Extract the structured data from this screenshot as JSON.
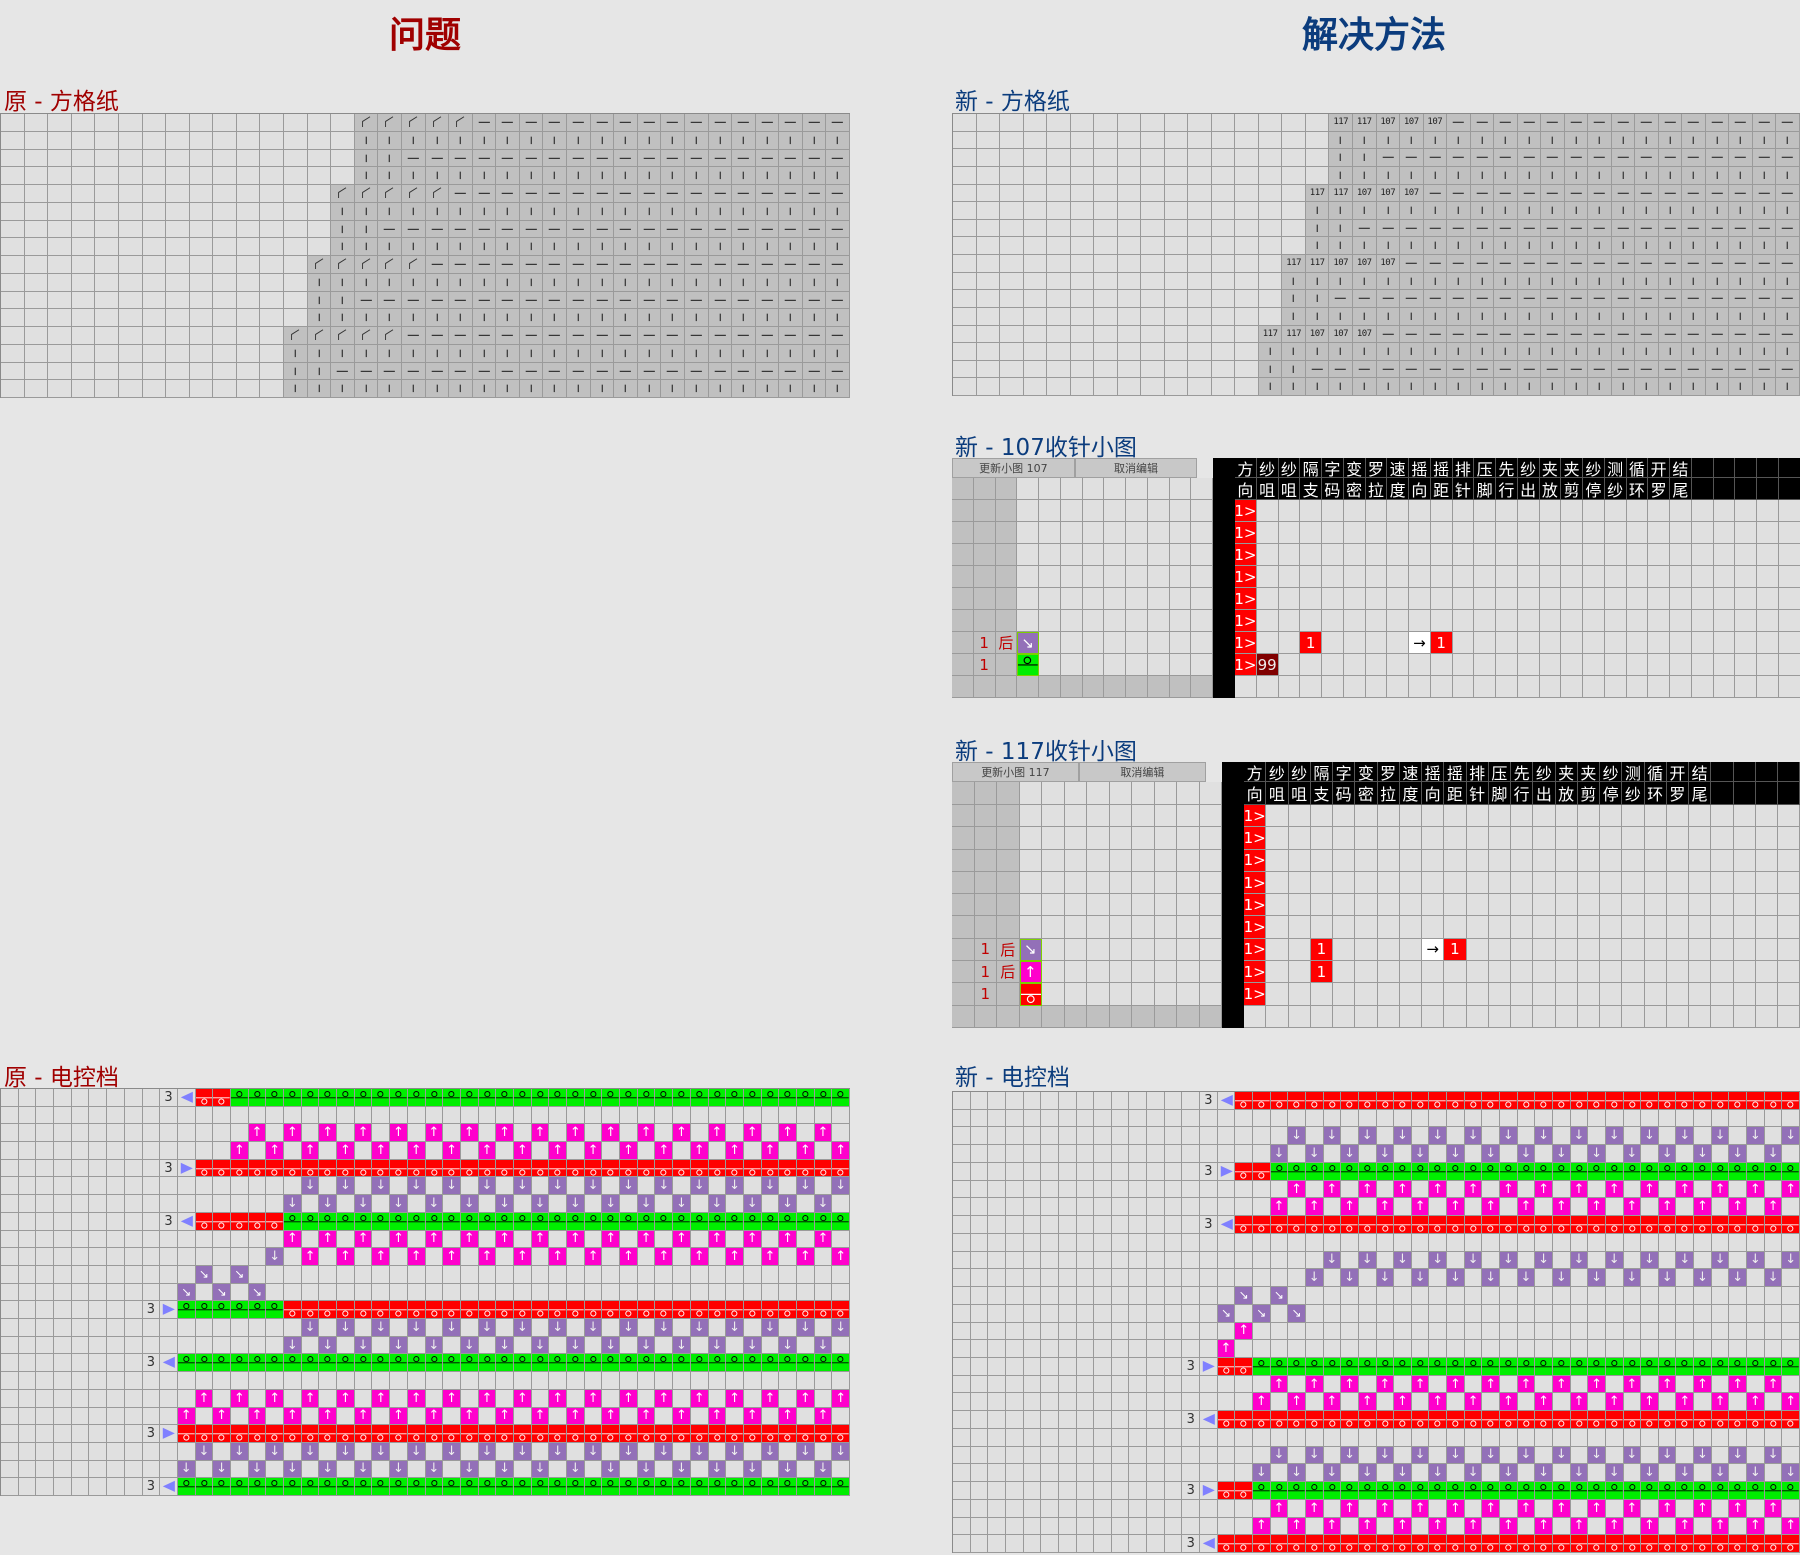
{
  "headers": {
    "problem": "问题",
    "solution": "解决方法"
  },
  "colors": {
    "problem": "#a00000",
    "solution": "#0b3c7d",
    "red": "#ff0000",
    "green": "#00ee00",
    "magenta": "#ff00cc",
    "purple": "#9370b8",
    "arrow": "#8080ff"
  },
  "orig_grid": {
    "title": "原 - 方格纸",
    "cols": 36,
    "symbols": {
      "c": "knit-tuck-corner",
      "|": "vertical",
      "-": "horizontal"
    },
    "rows": [
      "15. 5c 16-",
      "15. 21|",
      "15. 2| 19-",
      "15. 21|",
      "14. 5c 17-",
      "14. 22|",
      "14. 2| 20-",
      "14. 22|",
      "13. 5c 18-",
      "13. 23|",
      "13. 2| 21-",
      "13. 23|",
      "12. 5c 19-",
      "12. 24|",
      "12. 2| 22-",
      "12. 24|"
    ]
  },
  "new_grid": {
    "title": "新 - 方格纸",
    "cols": 36,
    "symbols": {
      "A": "117",
      "B": "107",
      "|": "vertical",
      "-": "horizontal"
    },
    "rows": [
      "16. 2A 3B 15-",
      "16. 20|",
      "16. 2| 18-",
      "16. 20|",
      "15. 2A 3B 16-",
      "15. 21|",
      "15. 2| 19-",
      "15. 21|",
      "14. 2A 3B 17-",
      "14. 22|",
      "14. 2| 20-",
      "14. 22|",
      "13. 2A 3B 18-",
      "13. 23|",
      "13. 2| 21-",
      "13. 23|"
    ]
  },
  "chart107": {
    "title": "新 - 107收针小图",
    "update_button": "更新小图 107",
    "cancel_button": "取消编辑",
    "header_top": [
      "方",
      "纱",
      "纱",
      "隔",
      "字",
      "变",
      "罗",
      "速",
      "摇",
      "摇",
      "排",
      "压",
      "先",
      "纱",
      "夹",
      "夹",
      "纱",
      "测",
      "循",
      "开",
      "结"
    ],
    "header_bottom": [
      "向",
      "咀",
      "咀",
      "支",
      "码",
      "密",
      "拉",
      "度",
      "向",
      "距",
      "针",
      "脚",
      "行",
      "出",
      "放",
      "剪",
      "停",
      "纱",
      "环",
      "罗",
      "尾"
    ],
    "rows": [
      {
        "count": "",
        "side": "",
        "stitch": "",
        "cells": [
          {
            "col": 0,
            "text": "1>",
            "style": "red"
          }
        ]
      },
      {
        "count": "",
        "side": "",
        "stitch": "",
        "cells": [
          {
            "col": 0,
            "text": "1>",
            "style": "red"
          }
        ]
      },
      {
        "count": "",
        "side": "",
        "stitch": "",
        "cells": [
          {
            "col": 0,
            "text": "1>",
            "style": "red"
          }
        ]
      },
      {
        "count": "",
        "side": "",
        "stitch": "",
        "cells": [
          {
            "col": 0,
            "text": "1>",
            "style": "red"
          }
        ]
      },
      {
        "count": "",
        "side": "",
        "stitch": "",
        "cells": [
          {
            "col": 0,
            "text": "1>",
            "style": "red"
          }
        ]
      },
      {
        "count": "",
        "side": "",
        "stitch": "",
        "cells": [
          {
            "col": 0,
            "text": "1>",
            "style": "red"
          }
        ]
      },
      {
        "count": "1",
        "side": "后",
        "stitch": "transfer-purple",
        "cells": [
          {
            "col": 0,
            "text": "1>",
            "style": "red"
          },
          {
            "col": 3,
            "text": "1",
            "style": "red"
          },
          {
            "col": 8,
            "text": "→",
            "style": "white"
          },
          {
            "col": 9,
            "text": "1",
            "style": "red"
          }
        ]
      },
      {
        "count": "1",
        "side": "",
        "stitch": "loop-green",
        "cells": [
          {
            "col": 0,
            "text": "1>",
            "style": "red"
          },
          {
            "col": 1,
            "text": "99",
            "style": "darkred"
          }
        ]
      }
    ]
  },
  "chart117": {
    "title": "新 - 117收针小图",
    "update_button": "更新小图 117",
    "cancel_button": "取消编辑",
    "header_top": [
      "方",
      "纱",
      "纱",
      "隔",
      "字",
      "变",
      "罗",
      "速",
      "摇",
      "摇",
      "排",
      "压",
      "先",
      "纱",
      "夹",
      "夹",
      "纱",
      "测",
      "循",
      "开",
      "结"
    ],
    "header_bottom": [
      "向",
      "咀",
      "咀",
      "支",
      "码",
      "密",
      "拉",
      "度",
      "向",
      "距",
      "针",
      "脚",
      "行",
      "出",
      "放",
      "剪",
      "停",
      "纱",
      "环",
      "罗",
      "尾"
    ],
    "rows": [
      {
        "count": "",
        "side": "",
        "stitch": "",
        "cells": [
          {
            "col": 0,
            "text": "1>",
            "style": "red"
          }
        ]
      },
      {
        "count": "",
        "side": "",
        "stitch": "",
        "cells": [
          {
            "col": 0,
            "text": "1>",
            "style": "red"
          }
        ]
      },
      {
        "count": "",
        "side": "",
        "stitch": "",
        "cells": [
          {
            "col": 0,
            "text": "1>",
            "style": "red"
          }
        ]
      },
      {
        "count": "",
        "side": "",
        "stitch": "",
        "cells": [
          {
            "col": 0,
            "text": "1>",
            "style": "red"
          }
        ]
      },
      {
        "count": "",
        "side": "",
        "stitch": "",
        "cells": [
          {
            "col": 0,
            "text": "1>",
            "style": "red"
          }
        ]
      },
      {
        "count": "",
        "side": "",
        "stitch": "",
        "cells": [
          {
            "col": 0,
            "text": "1>",
            "style": "red"
          }
        ]
      },
      {
        "count": "1",
        "side": "后",
        "stitch": "transfer-purple",
        "cells": [
          {
            "col": 0,
            "text": "1>",
            "style": "red"
          },
          {
            "col": 3,
            "text": "1",
            "style": "red"
          },
          {
            "col": 8,
            "text": "→",
            "style": "white"
          },
          {
            "col": 9,
            "text": "1",
            "style": "red"
          }
        ]
      },
      {
        "count": "1",
        "side": "后",
        "stitch": "up-magenta",
        "cells": [
          {
            "col": 0,
            "text": "1>",
            "style": "red"
          },
          {
            "col": 3,
            "text": "1",
            "style": "red"
          }
        ]
      },
      {
        "count": "1",
        "side": "",
        "stitch": "loop-red",
        "cells": [
          {
            "col": 0,
            "text": "1>",
            "style": "red"
          }
        ]
      }
    ]
  },
  "orig_control": {
    "title": "原 - 电控档",
    "cols": 48,
    "legend": {
      "3": "yarn-feeder-number",
      "L": "carriage-left",
      "R": "carriage-right",
      "r": "red-loop",
      "g": "green-loop",
      "u": "magenta-up-arrow",
      "d": "purple-down-arrow",
      "x": "purple-transfer"
    },
    "rows": [
      "9. 3 L 2r 35g",
      "48.",
      "14. 17(u.)",
      "13. 17(u.) u",
      "9. 3 R 37r",
      "17. 15(d.) d",
      "16. 16(d.)",
      "9. 3 L 5r 32g",
      "16. 16(u.)",
      "15. d . 15(u.) u",
      "11. x . x . 33.",
      "10. x . x . x 33.",
      "8. 3 R 6g 32r",
      "17. 15(d.) d",
      "16. 16(d.)",
      "8. 3 L 38g",
      "48.",
      "11. 18(u.) u",
      "10. 19(u.)",
      "8. 3 R 38r",
      "11. 18(d.) d",
      "10. 19(d.)",
      "8. 3 L 38g"
    ]
  },
  "new_control": {
    "title": "新 - 电控档",
    "cols": 48,
    "rows": [
      "14. 3 L 32r",
      "48.",
      "19. 14(d.) d",
      "18. 15(d.)",
      "14. 3 R 2r 30g",
      "19. 14(u.) u",
      "18. 15(u.)",
      "14. 3 L 32r",
      "48.",
      "21. 13(d.) d",
      "20. 14(d.)",
      "16. x . x 29.",
      "15. x . x . x 28.",
      "16. u 31.",
      "15. u 32.",
      "13. 3 R 2r 31g",
      "18. 15(u.)",
      "17. 15(u.) u",
      "13. 3 L 33r",
      "48.",
      "18. 15(d.)",
      "17. 15(d.) d",
      "13. 3 R 2r 31g",
      "18. 15(u.)",
      "17. 15(u.) u",
      "13. 3 L 33r"
    ]
  }
}
